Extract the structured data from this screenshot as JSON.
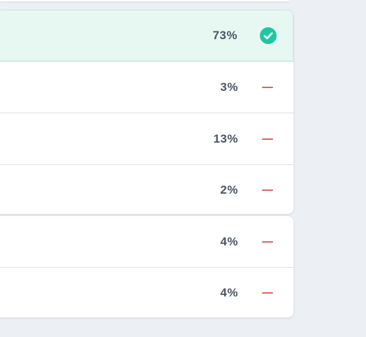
{
  "rows": [
    {
      "percent": "73%",
      "status": "correct",
      "status_icon": "check-circle-icon"
    },
    {
      "percent": "3%",
      "status": "incorrect",
      "status_icon": "minus-icon"
    },
    {
      "percent": "13%",
      "status": "incorrect",
      "status_icon": "minus-icon"
    },
    {
      "percent": "2%",
      "status": "incorrect",
      "status_icon": "minus-icon"
    },
    {
      "percent": "4%",
      "status": "incorrect",
      "status_icon": "minus-icon"
    },
    {
      "percent": "4%",
      "status": "incorrect",
      "status_icon": "minus-icon"
    }
  ],
  "colors": {
    "correct_bg": "#e7f8f2",
    "correct_icon": "#20c6a4",
    "incorrect_icon": "#e0605f",
    "text": "#4a5566",
    "page_bg": "#eceff3"
  }
}
